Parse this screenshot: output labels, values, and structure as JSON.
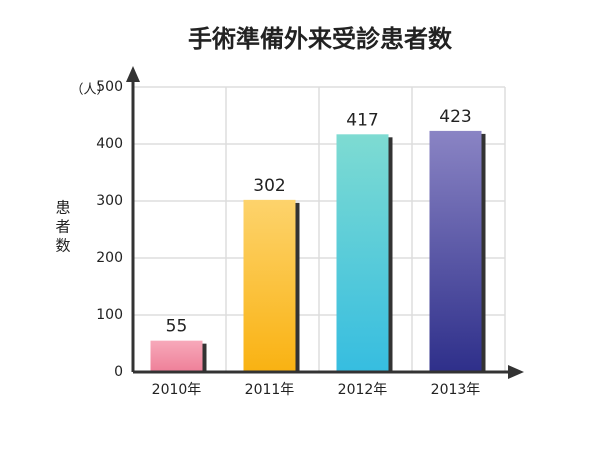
{
  "chart_data": {
    "type": "bar",
    "title": "手術準備外来受診患者数",
    "y_label": "患者数",
    "y_unit": "（人）",
    "categories": [
      "2010年",
      "2011年",
      "2012年",
      "2013年"
    ],
    "values": [
      55,
      302,
      417,
      423
    ],
    "colors": [
      [
        "#f7a9ba",
        "#ee7f98"
      ],
      [
        "#fdd36c",
        "#f9b212"
      ],
      [
        "#7edbd2",
        "#36bde0"
      ],
      [
        "#8a84c4",
        "#2e2f8a"
      ]
    ],
    "ylim": [
      0,
      500
    ],
    "yticks": [
      0,
      100,
      200,
      300,
      400,
      500
    ],
    "grid": true
  }
}
